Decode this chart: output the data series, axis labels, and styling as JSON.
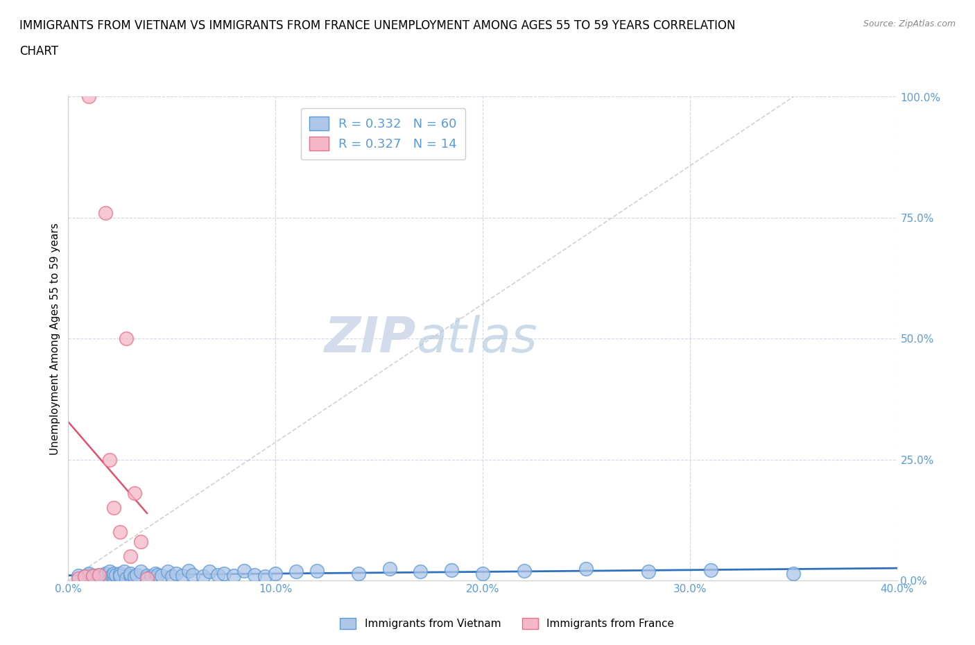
{
  "title_line1": "IMMIGRANTS FROM VIETNAM VS IMMIGRANTS FROM FRANCE UNEMPLOYMENT AMONG AGES 55 TO 59 YEARS CORRELATION",
  "title_line2": "CHART",
  "source": "Source: ZipAtlas.com",
  "ylabel": "Unemployment Among Ages 55 to 59 years",
  "xlim": [
    0.0,
    0.4
  ],
  "ylim": [
    0.0,
    1.0
  ],
  "xticks": [
    0.0,
    0.1,
    0.2,
    0.3,
    0.4
  ],
  "xtick_labels": [
    "0.0%",
    "10.0%",
    "20.0%",
    "30.0%",
    "40.0%"
  ],
  "yticks": [
    0.0,
    0.25,
    0.5,
    0.75,
    1.0
  ],
  "ytick_labels": [
    "0.0%",
    "25.0%",
    "50.0%",
    "75.0%",
    "100.0%"
  ],
  "vietnam_color": "#aec6e8",
  "france_color": "#f4b8c8",
  "vietnam_edge": "#5b9bd5",
  "france_edge": "#e8708a",
  "trendline_vietnam_color": "#3070c0",
  "trendline_france_color": "#e05070",
  "diagonal_color": "#cccccc",
  "R_vietnam": 0.332,
  "N_vietnam": 60,
  "R_france": 0.327,
  "N_france": 14,
  "watermark_zip": "ZIP",
  "watermark_atlas": "atlas",
  "vietnam_x": [
    0.005,
    0.008,
    0.01,
    0.01,
    0.01,
    0.012,
    0.013,
    0.015,
    0.015,
    0.017,
    0.018,
    0.018,
    0.02,
    0.02,
    0.021,
    0.022,
    0.022,
    0.023,
    0.025,
    0.025,
    0.025,
    0.027,
    0.028,
    0.03,
    0.03,
    0.032,
    0.033,
    0.035,
    0.038,
    0.04,
    0.042,
    0.043,
    0.045,
    0.048,
    0.05,
    0.052,
    0.055,
    0.058,
    0.06,
    0.065,
    0.068,
    0.072,
    0.075,
    0.08,
    0.085,
    0.09,
    0.095,
    0.1,
    0.11,
    0.12,
    0.14,
    0.155,
    0.17,
    0.185,
    0.2,
    0.22,
    0.25,
    0.28,
    0.31,
    0.35
  ],
  "vietnam_y": [
    0.01,
    0.008,
    0.005,
    0.012,
    0.015,
    0.008,
    0.01,
    0.005,
    0.012,
    0.008,
    0.015,
    0.01,
    0.005,
    0.018,
    0.01,
    0.008,
    0.015,
    0.012,
    0.008,
    0.015,
    0.01,
    0.018,
    0.005,
    0.01,
    0.015,
    0.008,
    0.012,
    0.018,
    0.01,
    0.008,
    0.015,
    0.012,
    0.01,
    0.018,
    0.008,
    0.015,
    0.01,
    0.02,
    0.012,
    0.008,
    0.018,
    0.012,
    0.015,
    0.01,
    0.02,
    0.012,
    0.008,
    0.015,
    0.018,
    0.02,
    0.015,
    0.025,
    0.018,
    0.022,
    0.015,
    0.02,
    0.025,
    0.018,
    0.022,
    0.015
  ],
  "france_x": [
    0.005,
    0.008,
    0.01,
    0.012,
    0.015,
    0.018,
    0.02,
    0.022,
    0.025,
    0.028,
    0.03,
    0.032,
    0.035,
    0.038
  ],
  "france_y": [
    0.005,
    0.008,
    1.0,
    0.01,
    0.012,
    0.76,
    0.25,
    0.15,
    0.1,
    0.5,
    0.05,
    0.18,
    0.08,
    0.005
  ],
  "background_color": "#ffffff",
  "grid_color": "#d0d8e8",
  "title_fontsize": 12,
  "axis_label_fontsize": 11,
  "tick_fontsize": 11,
  "legend_label_vietnam": "Immigrants from Vietnam",
  "legend_label_france": "Immigrants from France"
}
